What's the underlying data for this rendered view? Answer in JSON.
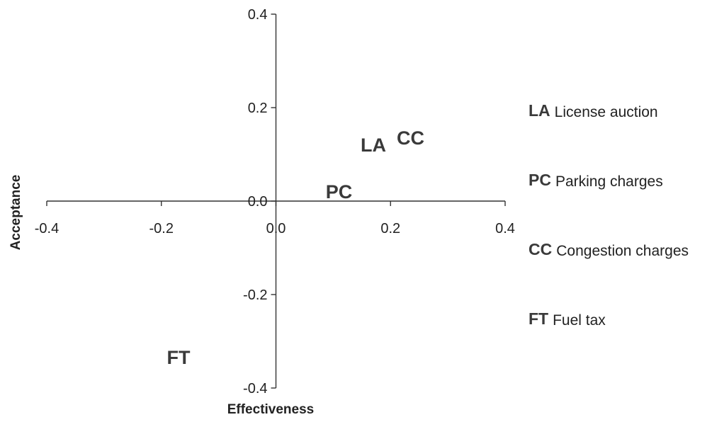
{
  "chart_data": {
    "type": "scatter",
    "title": "",
    "xlabel": "Effectiveness",
    "ylabel": "Acceptance",
    "xlim": [
      -0.4,
      0.4
    ],
    "ylim": [
      -0.4,
      0.4
    ],
    "x_ticks": [
      "-0.4",
      "-0.2",
      "0.0",
      "0.2",
      "0.4"
    ],
    "y_ticks": [
      "0.4",
      "0.2",
      "0.0",
      "-0.2",
      "-0.4"
    ],
    "x_tick_values": [
      -0.4,
      -0.2,
      0.0,
      0.2,
      0.4
    ],
    "y_tick_values": [
      0.4,
      0.2,
      0.0,
      -0.2,
      -0.4
    ],
    "grid": false,
    "points": [
      {
        "label": "LA",
        "x": 0.17,
        "y": 0.12
      },
      {
        "label": "CC",
        "x": 0.235,
        "y": 0.135
      },
      {
        "label": "PC",
        "x": 0.11,
        "y": 0.02
      },
      {
        "label": "FT",
        "x": -0.17,
        "y": -0.335
      }
    ],
    "legend_position": "right",
    "legend": [
      {
        "code": "LA",
        "text": "License auction"
      },
      {
        "code": "PC",
        "text": "Parking charges"
      },
      {
        "code": "CC",
        "text": "Congestion charges"
      },
      {
        "code": "FT",
        "text": "Fuel tax"
      }
    ]
  }
}
